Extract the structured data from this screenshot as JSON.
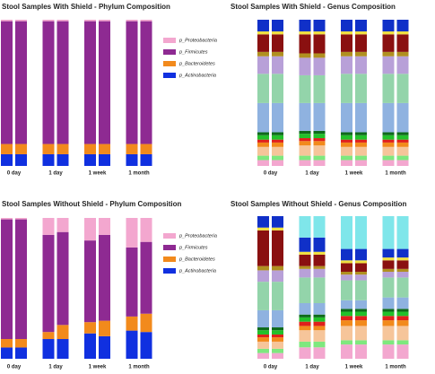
{
  "chart_data": [
    {
      "type": "stacked_bar",
      "title": "Stool Samples With Shield - Phylum Composition",
      "categories": [
        "0 day",
        null,
        "1 day",
        null,
        "1 week",
        null,
        "1 month",
        null
      ],
      "ylim": [
        0,
        100
      ],
      "legend": "right",
      "series": [
        {
          "name": "p_Actinobacteria",
          "color": "#1030e0",
          "values": [
            8,
            8,
            8,
            8,
            8,
            8,
            8,
            8
          ]
        },
        {
          "name": "p_Bacteroidetes",
          "color": "#f28a1c",
          "values": [
            7,
            7,
            7,
            7,
            7,
            7,
            7,
            7
          ]
        },
        {
          "name": "p_Firmicutes",
          "color": "#8e2a92",
          "values": [
            84,
            84,
            84,
            84,
            84,
            84,
            84,
            84
          ]
        },
        {
          "name": "p_Proteobacteria",
          "color": "#f3a7cf",
          "values": [
            1,
            1,
            1,
            1,
            1,
            1,
            1,
            1
          ]
        }
      ]
    },
    {
      "type": "stacked_bar",
      "title": "Stool Samples With Shield - Genus Composition",
      "categories": [
        "0 day",
        null,
        "1 day",
        null,
        "1 week",
        null,
        "1 month",
        null
      ],
      "ylim": [
        0,
        100
      ],
      "series": [
        {
          "color": "#f3a7cf",
          "values": [
            4,
            4,
            4,
            4,
            4,
            4,
            4,
            4
          ]
        },
        {
          "color": "#7ee87e",
          "values": [
            3,
            3,
            3,
            3,
            3,
            3,
            3,
            3
          ]
        },
        {
          "color": "#f6c59a",
          "values": [
            6,
            6,
            7,
            7,
            6,
            6,
            6,
            6
          ]
        },
        {
          "color": "#f28a1c",
          "values": [
            3,
            3,
            3,
            3,
            3,
            3,
            3,
            3
          ]
        },
        {
          "color": "#e0201c",
          "values": [
            2,
            2,
            2,
            2,
            2,
            2,
            2,
            2
          ]
        },
        {
          "color": "#22c02a",
          "values": [
            3,
            3,
            3,
            3,
            3,
            3,
            3,
            3
          ]
        },
        {
          "color": "#0e6b1a",
          "values": [
            2,
            2,
            2,
            2,
            2,
            2,
            2,
            2
          ]
        },
        {
          "color": "#8fb2e0",
          "values": [
            20,
            20,
            19,
            19,
            20,
            20,
            20,
            20
          ]
        },
        {
          "color": "#93d4aa",
          "values": [
            20,
            20,
            19,
            19,
            20,
            20,
            20,
            20
          ]
        },
        {
          "color": "#b8a0d8",
          "values": [
            12,
            12,
            12,
            12,
            12,
            12,
            12,
            12
          ]
        },
        {
          "color": "#b09020",
          "values": [
            3,
            3,
            3,
            3,
            3,
            3,
            3,
            3
          ]
        },
        {
          "color": "#8a1010",
          "values": [
            12,
            12,
            13,
            13,
            12,
            12,
            12,
            12
          ]
        },
        {
          "color": "#f0e040",
          "values": [
            2,
            2,
            2,
            2,
            2,
            2,
            2,
            2
          ]
        },
        {
          "color": "#1030c8",
          "values": [
            8,
            8,
            8,
            8,
            8,
            8,
            8,
            8
          ]
        }
      ]
    },
    {
      "type": "stacked_bar",
      "title": "Stool Samples Without Shield - Phylum Composition",
      "categories": [
        "0 day",
        null,
        "1 day",
        null,
        "1 week",
        null,
        "1 month",
        null
      ],
      "ylim": [
        0,
        100
      ],
      "legend": "right",
      "series": [
        {
          "name": "p_Actinobacteria",
          "color": "#1030e0",
          "values": [
            8,
            8,
            14,
            14,
            18,
            16,
            20,
            19
          ]
        },
        {
          "name": "p_Bacteroidetes",
          "color": "#f28a1c",
          "values": [
            6,
            6,
            5,
            10,
            8,
            11,
            10,
            13
          ]
        },
        {
          "name": "p_Firmicutes",
          "color": "#8e2a92",
          "values": [
            85,
            85,
            69,
            66,
            58,
            61,
            49,
            51
          ]
        },
        {
          "name": "p_Proteobacteria",
          "color": "#f3a7cf",
          "values": [
            1,
            1,
            12,
            10,
            16,
            12,
            21,
            17
          ]
        }
      ]
    },
    {
      "type": "stacked_bar",
      "title": "Stool Samples Without Shield - Genus Composition",
      "categories": [
        "0 day",
        null,
        "1 day",
        null,
        "1 week",
        null,
        "1 month",
        null
      ],
      "ylim": [
        0,
        100
      ],
      "series": [
        {
          "color": "#f3a7cf",
          "values": [
            4,
            4,
            8,
            8,
            10,
            10,
            10,
            10
          ]
        },
        {
          "color": "#7ee87e",
          "values": [
            3,
            3,
            4,
            4,
            3,
            3,
            3,
            3
          ]
        },
        {
          "color": "#f6c59a",
          "values": [
            5,
            5,
            8,
            8,
            10,
            10,
            10,
            10
          ]
        },
        {
          "color": "#f28a1c",
          "values": [
            3,
            3,
            3,
            3,
            4,
            4,
            4,
            4
          ]
        },
        {
          "color": "#e0201c",
          "values": [
            2,
            2,
            3,
            3,
            3,
            3,
            3,
            3
          ]
        },
        {
          "color": "#22c02a",
          "values": [
            3,
            3,
            3,
            3,
            3,
            3,
            3,
            3
          ]
        },
        {
          "color": "#0e6b1a",
          "values": [
            2,
            2,
            2,
            2,
            2,
            2,
            2,
            2
          ]
        },
        {
          "color": "#8fb2e0",
          "values": [
            12,
            12,
            8,
            8,
            6,
            6,
            8,
            8
          ]
        },
        {
          "color": "#93d4aa",
          "values": [
            20,
            20,
            18,
            18,
            14,
            14,
            14,
            14
          ]
        },
        {
          "color": "#b8a0d8",
          "values": [
            8,
            8,
            6,
            6,
            4,
            4,
            4,
            4
          ]
        },
        {
          "color": "#b09020",
          "values": [
            3,
            3,
            2,
            2,
            2,
            2,
            2,
            2
          ]
        },
        {
          "color": "#8a1010",
          "values": [
            25,
            25,
            8,
            8,
            6,
            6,
            6,
            6
          ]
        },
        {
          "color": "#f0e040",
          "values": [
            2,
            2,
            2,
            2,
            2,
            2,
            2,
            2
          ]
        },
        {
          "color": "#1030c8",
          "values": [
            8,
            8,
            10,
            10,
            8,
            8,
            6,
            6
          ]
        },
        {
          "color": "#7fe6ea",
          "values": [
            0,
            0,
            15,
            15,
            23,
            23,
            23,
            23
          ]
        }
      ]
    }
  ]
}
